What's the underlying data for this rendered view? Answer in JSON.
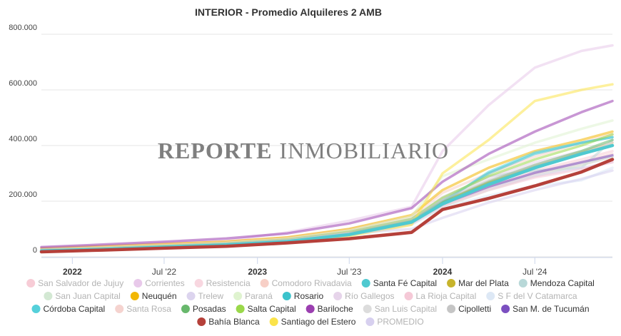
{
  "chart_data": {
    "type": "line",
    "title": "INTERIOR - Promedio Alquileres 2 AMB",
    "watermark_bold": "REPORTE",
    "watermark_light": "INMOBILIARIO",
    "ylim": [
      0,
      800000
    ],
    "yticks": [
      0,
      200000,
      400000,
      600000,
      800000
    ],
    "ytick_labels": [
      "0",
      "200.000",
      "400.000",
      "600.000",
      "800.000"
    ],
    "xlim": [
      "2021-11-01",
      "2024-12-01"
    ],
    "xticks": [
      {
        "date": "2022-01-01",
        "label": "2022",
        "bold": true
      },
      {
        "date": "2022-07-01",
        "label": "Jul '22",
        "bold": false
      },
      {
        "date": "2023-01-01",
        "label": "2023",
        "bold": true
      },
      {
        "date": "2023-07-01",
        "label": "Jul '23",
        "bold": false
      },
      {
        "date": "2024-01-01",
        "label": "2024",
        "bold": true
      },
      {
        "date": "2024-07-01",
        "label": "Jul '24",
        "bold": false
      }
    ],
    "grid": "y-horizontal",
    "legend_position": "bottom",
    "x": [
      "2021-11-01",
      "2022-03-01",
      "2022-07-01",
      "2022-11-01",
      "2023-03-01",
      "2023-07-01",
      "2023-11-01",
      "2024-01-01",
      "2024-04-01",
      "2024-07-01",
      "2024-10-01",
      "2024-12-01"
    ],
    "series": [
      {
        "name": "San Salvador de Jujuy",
        "color": "#f7ccd6",
        "values": [
          24000,
          30000,
          37000,
          45000,
          57000,
          85000,
          128000,
          200000,
          265000,
          310000,
          350000,
          380000
        ]
      },
      {
        "name": "Corrientes",
        "color": "#e8c9ea",
        "values": [
          33000,
          40000,
          49000,
          58000,
          88000,
          130000,
          180000,
          380000,
          545000,
          680000,
          740000,
          760000
        ]
      },
      {
        "name": "Resistencia",
        "color": "#f8d7e0",
        "values": [
          25000,
          31000,
          38000,
          46000,
          58000,
          84000,
          124000,
          190000,
          250000,
          295000,
          330000,
          360000
        ]
      },
      {
        "name": "Comodoro Rivadavia",
        "color": "#f7cfc6",
        "values": [
          28000,
          35000,
          44000,
          55000,
          70000,
          100000,
          145000,
          230000,
          300000,
          360000,
          410000,
          440000
        ]
      },
      {
        "name": "Santa Fé Capital",
        "color": "#4fc9d0",
        "values": [
          21000,
          27000,
          35000,
          43000,
          55000,
          80000,
          125000,
          190000,
          260000,
          320000,
          370000,
          400000
        ]
      },
      {
        "name": "Mar del Plata",
        "color": "#c7b42c",
        "values": [
          22000,
          28000,
          36000,
          44000,
          56000,
          82000,
          126000,
          195000,
          268000,
          325000,
          375000,
          410000
        ]
      },
      {
        "name": "Mendoza Capital",
        "color": "#b8d8d8",
        "values": [
          24000,
          30000,
          38000,
          47000,
          60000,
          88000,
          135000,
          210000,
          290000,
          310000,
          320000,
          420000
        ]
      },
      {
        "name": "San Juan Capital",
        "color": "#d3e8d3",
        "values": [
          20000,
          26000,
          33000,
          41000,
          52000,
          78000,
          118000,
          180000,
          240000,
          290000,
          330000,
          360000
        ]
      },
      {
        "name": "Neuquén",
        "color": "#f2b704",
        "values": [
          30000,
          38000,
          46000,
          55000,
          70000,
          100000,
          150000,
          240000,
          320000,
          380000,
          420000,
          450000
        ]
      },
      {
        "name": "Trelew",
        "color": "#dcd4ee",
        "values": [
          22000,
          28000,
          35000,
          43000,
          55000,
          80000,
          120000,
          185000,
          245000,
          290000,
          320000,
          340000
        ]
      },
      {
        "name": "Paraná",
        "color": "#dff3cf",
        "values": [
          25000,
          32000,
          40000,
          50000,
          65000,
          95000,
          145000,
          290000,
          350000,
          410000,
          460000,
          490000
        ]
      },
      {
        "name": "Rosario",
        "color": "#3cc3cc",
        "values": [
          23000,
          29000,
          37000,
          46000,
          59000,
          86000,
          130000,
          200000,
          300000,
          370000,
          410000,
          430000
        ]
      },
      {
        "name": "Río Gallegos",
        "color": "#e6d4ea",
        "values": [
          26000,
          33000,
          41000,
          50000,
          64000,
          92000,
          138000,
          215000,
          285000,
          340000,
          380000,
          410000
        ]
      },
      {
        "name": "La Rioja Capital",
        "color": "#f5c9d7",
        "values": [
          21000,
          27000,
          34000,
          42000,
          53000,
          78000,
          118000,
          182000,
          240000,
          285000,
          315000,
          340000
        ]
      },
      {
        "name": "S F del V Catamarca",
        "color": "#dde8f5",
        "values": [
          20000,
          26000,
          33000,
          40000,
          51000,
          76000,
          116000,
          175000,
          220000,
          255000,
          275000,
          320000
        ]
      },
      {
        "name": "Córdoba Capital",
        "color": "#55d0da",
        "values": [
          22000,
          28000,
          36000,
          45000,
          57000,
          83000,
          127000,
          195000,
          305000,
          375000,
          410000,
          430000
        ]
      },
      {
        "name": "Santa Rosa",
        "color": "#f5d3cf",
        "values": [
          23000,
          29000,
          36000,
          45000,
          57000,
          82000,
          124000,
          190000,
          255000,
          300000,
          340000,
          370000
        ]
      },
      {
        "name": "Posadas",
        "color": "#68b86c",
        "values": [
          22000,
          28000,
          36000,
          45000,
          57000,
          84000,
          128000,
          198000,
          270000,
          330000,
          380000,
          420000
        ]
      },
      {
        "name": "Salta Capital",
        "color": "#9ad84a",
        "values": [
          25000,
          31000,
          39000,
          48000,
          62000,
          90000,
          136000,
          212000,
          290000,
          350000,
          400000,
          440000
        ]
      },
      {
        "name": "Bariloche",
        "color": "#9b3fb0",
        "values": [
          35000,
          44000,
          54000,
          66000,
          84000,
          120000,
          175000,
          270000,
          370000,
          450000,
          520000,
          560000
        ]
      },
      {
        "name": "San Luis Capital",
        "color": "#dcdcdc",
        "values": [
          22000,
          28000,
          35000,
          43000,
          55000,
          80000,
          122000,
          188000,
          250000,
          298000,
          335000,
          360000
        ]
      },
      {
        "name": "Cipolletti",
        "color": "#c5c5c5",
        "values": [
          24000,
          30000,
          38000,
          47000,
          60000,
          87000,
          132000,
          205000,
          275000,
          330000,
          372000,
          400000
        ]
      },
      {
        "name": "San M. de Tucumán",
        "color": "#7b4fc0",
        "values": [
          22000,
          28000,
          35000,
          44000,
          56000,
          81000,
          123000,
          190000,
          252000,
          302000,
          340000,
          365000
        ]
      },
      {
        "name": "Bahía Blanca",
        "color": "#b5403a",
        "values": [
          18000,
          24000,
          31000,
          38000,
          50000,
          65000,
          88000,
          170000,
          210000,
          255000,
          305000,
          350000
        ]
      },
      {
        "name": "Santiago del Estero",
        "color": "#fbe34a",
        "values": [
          20000,
          25000,
          32000,
          40000,
          51000,
          75000,
          115000,
          300000,
          420000,
          560000,
          600000,
          620000
        ]
      },
      {
        "name": "PROMEDIO",
        "color": "#d7d0ef",
        "values": [
          23000,
          29000,
          36000,
          45000,
          58000,
          84000,
          100000,
          140000,
          195000,
          240000,
          280000,
          310000
        ]
      }
    ],
    "highlighted": [
      "Santa Fé Capital",
      "Bahía Blanca"
    ],
    "dimmed": [
      "San Salvador de Jujuy",
      "Corrientes",
      "Resistencia",
      "Comodoro Rivadavia",
      "Mar del Plata",
      "Mendoza Capital",
      "San Juan Capital",
      "Neuquén",
      "Trelew",
      "Paraná",
      "Rosario",
      "Río Gallegos",
      "La Rioja Capital",
      "S F del V Catamarca",
      "Córdoba Capital",
      "Santa Rosa",
      "Posadas",
      "Salta Capital",
      "Bariloche",
      "San Luis Capital",
      "Cipolletti",
      "San M. de Tucumán",
      "Santiago del Estero",
      "PROMEDIO"
    ],
    "legend_dimmed": [
      "San Salvador de Jujuy",
      "Corrientes",
      "Resistencia",
      "Comodoro Rivadavia",
      "San Juan Capital",
      "Trelew",
      "Paraná",
      "Río Gallegos",
      "La Rioja Capital",
      "S F del V Catamarca",
      "Santa Rosa",
      "San Luis Capital",
      "PROMEDIO"
    ]
  }
}
